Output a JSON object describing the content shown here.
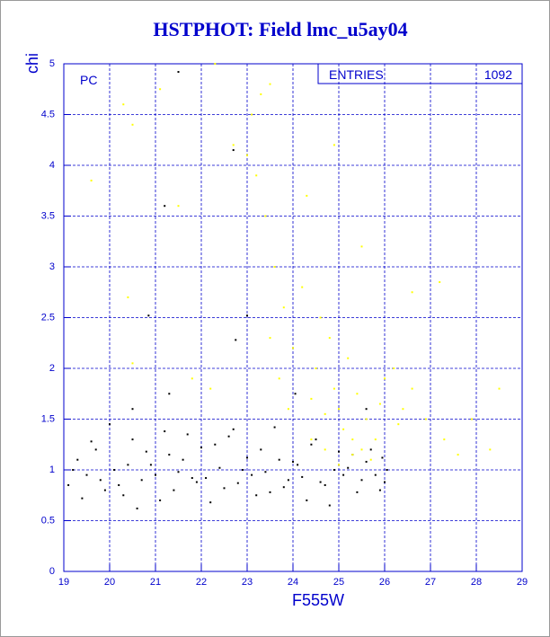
{
  "chart_data": {
    "type": "scatter",
    "title": "HSTPHOT: Field lmc_u5ay04",
    "xlabel": "F555W",
    "ylabel": "chi",
    "panel_label": "PC",
    "entries_label": "ENTRIES",
    "entries": 1092,
    "xlim": [
      19,
      29
    ],
    "xticks": [
      19,
      20,
      21,
      22,
      23,
      24,
      25,
      26,
      27,
      28,
      29
    ],
    "ylim": [
      0,
      5
    ],
    "yticks": [
      0,
      0.5,
      1,
      1.5,
      2,
      2.5,
      3,
      3.5,
      4,
      4.5,
      5
    ],
    "grid": true,
    "grid_color": "#0000cc",
    "axis_color": "#0000cc",
    "series": [
      {
        "color": "#000000",
        "x": [
          19.1,
          19.3,
          19.5,
          19.7,
          19.9,
          20.1,
          20.3,
          20.5,
          20.7,
          20.9,
          21.1,
          21.3,
          21.5,
          21.7,
          21.9,
          22.1,
          22.3,
          22.5,
          22.7,
          22.9,
          23.1,
          23.3,
          23.5,
          23.7,
          23.9,
          24.1,
          24.3,
          24.5,
          24.7,
          24.9,
          25.1,
          25.3,
          25.5,
          25.7,
          25.9,
          26.0,
          19.2,
          19.4,
          19.6,
          19.8,
          20.0,
          20.2,
          20.4,
          20.6,
          20.8,
          21.0,
          21.2,
          21.4,
          21.6,
          21.8,
          22.0,
          22.2,
          22.4,
          22.6,
          22.8,
          23.0,
          23.2,
          23.4,
          23.6,
          23.8,
          24.0,
          24.2,
          24.4,
          24.6,
          24.8,
          25.0,
          25.2,
          25.4,
          25.6,
          25.8,
          26.05,
          25.95,
          21.5,
          20.85,
          22.75,
          23.0,
          21.3,
          24.05,
          22.7,
          21.2,
          25.6,
          20.5
        ],
        "values": [
          0.85,
          1.1,
          0.95,
          1.2,
          0.8,
          1.0,
          0.75,
          1.3,
          0.9,
          1.05,
          0.7,
          1.15,
          0.98,
          1.35,
          0.88,
          0.92,
          1.25,
          0.82,
          1.4,
          1.0,
          0.95,
          1.2,
          0.78,
          1.1,
          0.9,
          1.05,
          0.7,
          1.3,
          0.85,
          1.0,
          0.95,
          1.15,
          0.9,
          1.2,
          0.8,
          0.88,
          1.0,
          0.72,
          1.28,
          0.9,
          1.45,
          0.85,
          1.05,
          0.62,
          1.18,
          0.95,
          1.38,
          0.8,
          1.1,
          0.92,
          1.22,
          0.68,
          1.02,
          1.33,
          0.87,
          1.12,
          0.75,
          0.98,
          1.42,
          0.83,
          1.08,
          0.93,
          1.25,
          0.88,
          0.65,
          1.18,
          1.02,
          0.78,
          1.08,
          0.95,
          1.0,
          1.12,
          4.92,
          2.52,
          2.28,
          2.52,
          1.75,
          1.75,
          4.15,
          3.6,
          1.6,
          1.6
        ]
      },
      {
        "color": "#ffff00",
        "x": [
          19.6,
          20.3,
          20.5,
          20.4,
          20.5,
          21.1,
          21.5,
          21.8,
          22.2,
          22.3,
          22.7,
          23.1,
          23.3,
          23.5,
          23.2,
          23.4,
          23.6,
          23.8,
          23.5,
          23.7,
          23.9,
          24.0,
          24.2,
          24.4,
          24.5,
          24.6,
          24.7,
          24.8,
          24.9,
          25.0,
          25.1,
          25.2,
          25.3,
          25.4,
          25.5,
          25.6,
          25.7,
          25.8,
          25.9,
          26.0,
          26.2,
          26.4,
          26.6,
          26.6,
          26.9,
          27.2,
          27.3,
          27.6,
          27.9,
          28.3,
          28.5,
          24.9,
          25.5,
          24.3,
          23.0,
          24.7,
          25.0,
          25.3,
          24.4,
          26.3
        ],
        "values": [
          3.85,
          4.6,
          4.4,
          2.7,
          2.05,
          4.75,
          3.6,
          1.9,
          1.8,
          5.0,
          4.2,
          4.5,
          4.7,
          4.8,
          3.9,
          3.5,
          3.0,
          2.6,
          2.3,
          1.9,
          1.6,
          2.2,
          2.8,
          1.7,
          2.0,
          2.5,
          1.55,
          2.3,
          1.8,
          1.6,
          1.4,
          2.1,
          1.3,
          1.75,
          1.2,
          1.5,
          1.1,
          1.3,
          1.65,
          1.9,
          2.0,
          1.6,
          1.8,
          2.75,
          1.5,
          2.85,
          1.3,
          1.15,
          1.5,
          1.2,
          1.8,
          4.2,
          3.2,
          3.7,
          4.1,
          1.2,
          1.05,
          1.15,
          1.3,
          1.45
        ]
      }
    ]
  }
}
